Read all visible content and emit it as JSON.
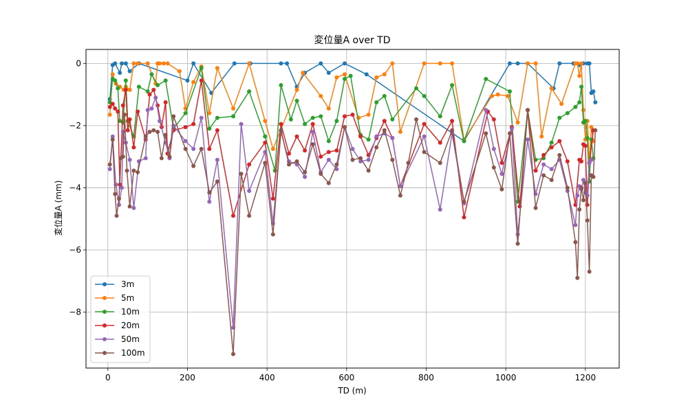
{
  "chart_data": {
    "type": "line",
    "title": "変位量A over TD",
    "xlabel": "TD (m)",
    "ylabel": "変位量A (mm)",
    "xlim": [
      -55,
      1285
    ],
    "ylim": [
      -9.8,
      0.45
    ],
    "xticks": [
      0,
      200,
      400,
      600,
      800,
      1000,
      1200
    ],
    "yticks": [
      0,
      -2,
      -4,
      -6,
      -8
    ],
    "xtick_labels": [
      "0",
      "200",
      "400",
      "600",
      "800",
      "1000",
      "1200"
    ],
    "ytick_labels": [
      "0",
      "−2",
      "−4",
      "−6",
      "−8"
    ],
    "grid": true,
    "legend_position": "lower-left",
    "series": [
      {
        "name": "3m",
        "color": "#1f77b4",
        "x": [
          5,
          12,
          18,
          30,
          35,
          45,
          55,
          78,
          200,
          215,
          260,
          318,
          358,
          435,
          450,
          475,
          495,
          535,
          555,
          595,
          650,
          895,
          1010,
          1030,
          1055,
          1120,
          1135,
          1170,
          1185,
          1195,
          1205,
          1210,
          1215,
          1220,
          1225
        ],
        "y": [
          -1.15,
          -0.05,
          0,
          -0.3,
          0,
          0,
          -0.25,
          0,
          -0.55,
          0,
          -0.95,
          0,
          0,
          0,
          0,
          -0.75,
          -0.3,
          0,
          -0.3,
          0,
          -0.35,
          -2.5,
          0,
          0,
          0,
          -0.8,
          0,
          0,
          -0.05,
          0,
          0,
          0,
          -0.95,
          -0.9,
          -1.25
        ]
      },
      {
        "name": "5m",
        "color": "#ff7f0e",
        "x": [
          5,
          12,
          20,
          30,
          40,
          45,
          55,
          65,
          75,
          100,
          120,
          125,
          130,
          140,
          150,
          180,
          195,
          215,
          235,
          255,
          275,
          315,
          355,
          395,
          415,
          475,
          490,
          535,
          555,
          575,
          595,
          630,
          655,
          675,
          695,
          715,
          735,
          795,
          835,
          865,
          895,
          965,
          980,
          1005,
          1030,
          1055,
          1075,
          1090,
          1115,
          1140,
          1175,
          1180,
          1185,
          1190,
          1195,
          1200,
          1205,
          1210,
          1215,
          1220
        ],
        "y": [
          -1.65,
          -0.35,
          -0.65,
          -0.75,
          -0.85,
          -0.75,
          -0.85,
          0,
          0,
          0,
          -0.65,
          0,
          0,
          0,
          0,
          -0.25,
          -1.45,
          -0.6,
          -0.1,
          -1.6,
          -0.15,
          -1.45,
          0,
          -1.85,
          -2.75,
          -0.85,
          -0.3,
          -1.05,
          -1.45,
          -0.45,
          -0.35,
          -1.75,
          -1.65,
          -0.45,
          -0.35,
          0,
          -2.2,
          0,
          0,
          0,
          -2.45,
          -1.05,
          -1.0,
          -1.05,
          -1.9,
          0,
          0,
          -2.35,
          -0.8,
          -1.3,
          0,
          0,
          -0.4,
          0,
          -1.5,
          -2.45,
          -1.85,
          -3.2,
          -2.05,
          -2.5
        ]
      },
      {
        "name": "10m",
        "color": "#2ca02c",
        "x": [
          5,
          12,
          18,
          25,
          30,
          38,
          45,
          50,
          65,
          78,
          100,
          110,
          125,
          145,
          165,
          195,
          235,
          255,
          275,
          315,
          355,
          395,
          420,
          435,
          460,
          475,
          495,
          515,
          535,
          555,
          575,
          595,
          610,
          635,
          655,
          675,
          695,
          715,
          775,
          795,
          835,
          865,
          895,
          950,
          1010,
          1030,
          1055,
          1075,
          1095,
          1115,
          1135,
          1155,
          1175,
          1185,
          1190,
          1195,
          1200,
          1205,
          1210,
          1215,
          1220
        ],
        "y": [
          -1.25,
          -0.5,
          -0.55,
          -0.8,
          -1.85,
          -1.9,
          -0.55,
          -1.85,
          -2.35,
          -0.75,
          -0.9,
          -0.35,
          -0.7,
          -0.55,
          -2.1,
          -1.6,
          -0.15,
          -2.1,
          -1.75,
          -1.7,
          -0.9,
          -2.35,
          -3.45,
          -0.7,
          -1.8,
          -1.2,
          -1.95,
          -1.75,
          -1.7,
          -2.5,
          -1.85,
          -0.5,
          -0.4,
          -2.3,
          -2.45,
          -1.25,
          -1.05,
          -1.8,
          -0.8,
          -1.05,
          -1.7,
          -0.7,
          -2.5,
          -0.5,
          -0.9,
          -4.45,
          -1.5,
          -3.1,
          -3.05,
          -2.55,
          -1.75,
          -1.6,
          -1.4,
          -1.25,
          -0.75,
          -1.9,
          -1.85,
          -2.4,
          -3.8,
          -2.45,
          -3.05
        ]
      },
      {
        "name": "20m",
        "color": "#d62728",
        "x": [
          5,
          12,
          18,
          25,
          30,
          38,
          45,
          50,
          55,
          65,
          75,
          95,
          105,
          115,
          125,
          135,
          145,
          150,
          165,
          195,
          215,
          235,
          255,
          275,
          315,
          355,
          395,
          415,
          435,
          455,
          475,
          495,
          515,
          535,
          555,
          575,
          595,
          615,
          635,
          655,
          675,
          695,
          715,
          735,
          795,
          835,
          865,
          895,
          955,
          970,
          990,
          1015,
          1035,
          1055,
          1075,
          1095,
          1115,
          1135,
          1155,
          1175,
          1185,
          1190,
          1195,
          1200,
          1205,
          1210,
          1220
        ],
        "y": [
          -1.4,
          -1.3,
          -1.45,
          -1.55,
          -3.9,
          -1.35,
          -0.85,
          -2.15,
          -1.8,
          -2.7,
          -1.55,
          -2.45,
          -1.0,
          -0.85,
          -1.35,
          -2.05,
          -1.25,
          -2.9,
          -2.15,
          -2.05,
          -1.95,
          -0.55,
          -2.75,
          -2.15,
          -4.9,
          -3.25,
          -2.55,
          -4.35,
          -1.95,
          -2.9,
          -2.35,
          -2.8,
          -1.95,
          -3.0,
          -2.85,
          -2.8,
          -1.7,
          -1.65,
          -2.35,
          -2.95,
          -2.4,
          -1.85,
          -2.4,
          -3.95,
          -1.95,
          -2.55,
          -1.85,
          -4.95,
          -1.55,
          -1.8,
          -3.2,
          -2.05,
          -4.6,
          -1.5,
          -3.45,
          -2.95,
          -2.7,
          -2.5,
          -3.15,
          -4.55,
          -3.1,
          -3.15,
          -2.6,
          -2.65,
          -4.55,
          -3.2,
          -2.15
        ]
      },
      {
        "name": "50m",
        "color": "#9467bd",
        "x": [
          5,
          12,
          20,
          28,
          35,
          38,
          45,
          55,
          65,
          78,
          95,
          100,
          110,
          120,
          130,
          145,
          155,
          165,
          195,
          215,
          235,
          255,
          275,
          315,
          335,
          355,
          395,
          415,
          435,
          455,
          475,
          495,
          515,
          535,
          555,
          575,
          595,
          615,
          635,
          655,
          675,
          695,
          715,
          735,
          795,
          835,
          865,
          895,
          950,
          970,
          990,
          1015,
          1030,
          1055,
          1075,
          1095,
          1115,
          1135,
          1155,
          1175,
          1180,
          1185,
          1190,
          1195,
          1200,
          1205,
          1210,
          1215
        ],
        "y": [
          -3.4,
          -2.35,
          -3.9,
          -4.55,
          -4.0,
          -2.2,
          -2.55,
          -3.1,
          -4.65,
          -3.15,
          -3.05,
          -1.5,
          -1.45,
          -1.1,
          -1.85,
          -2.55,
          -3.05,
          -2.0,
          -2.5,
          -2.75,
          -1.75,
          -4.45,
          -3.1,
          -8.5,
          -1.95,
          -4.1,
          -2.85,
          -5.15,
          -2.2,
          -3.15,
          -3.25,
          -3.65,
          -2.2,
          -3.5,
          -3.1,
          -3.4,
          -2.05,
          -2.75,
          -3.15,
          -3.1,
          -2.35,
          -2.25,
          -2.4,
          -3.95,
          -2.35,
          -4.7,
          -2.25,
          -4.5,
          -1.5,
          -2.75,
          -3.55,
          -2.1,
          -5.5,
          -2.45,
          -4.2,
          -3.25,
          -3.4,
          -3.1,
          -4.1,
          -5.2,
          -4.25,
          -3.95,
          -4.05,
          -3.75,
          -4.15,
          -4.25,
          -3.2,
          -3.1
        ]
      },
      {
        "name": "100m",
        "color": "#8c564b",
        "x": [
          5,
          12,
          18,
          22,
          28,
          32,
          38,
          42,
          48,
          55,
          65,
          75,
          95,
          105,
          115,
          125,
          135,
          145,
          155,
          165,
          195,
          215,
          235,
          255,
          275,
          315,
          335,
          355,
          395,
          415,
          435,
          455,
          475,
          495,
          515,
          535,
          555,
          575,
          595,
          615,
          635,
          655,
          675,
          695,
          715,
          735,
          755,
          775,
          795,
          835,
          865,
          895,
          950,
          970,
          990,
          1010,
          1030,
          1055,
          1075,
          1095,
          1115,
          1135,
          1155,
          1175,
          1180,
          1185,
          1190,
          1195,
          1200,
          1205,
          1210,
          1215,
          1220,
          1225
        ],
        "y": [
          -3.25,
          -2.45,
          -4.2,
          -4.9,
          -4.35,
          -3.05,
          -3.0,
          -1.65,
          -3.45,
          -4.6,
          -3.45,
          -3.5,
          -2.35,
          -2.2,
          -2.15,
          -2.2,
          -3.05,
          -2.3,
          -3.0,
          -1.7,
          -2.75,
          -3.3,
          -2.75,
          -4.15,
          -3.8,
          -9.35,
          -3.55,
          -4.9,
          -3.2,
          -5.5,
          -2.15,
          -3.25,
          -3.15,
          -3.5,
          -2.6,
          -3.55,
          -3.85,
          -3.25,
          -2.05,
          -3.1,
          -3.05,
          -3.45,
          -2.7,
          -2.15,
          -3.1,
          -4.25,
          -3.2,
          -1.8,
          -2.85,
          -3.2,
          -2.15,
          -4.45,
          -2.25,
          -3.35,
          -4.05,
          -2.25,
          -5.8,
          -1.5,
          -4.65,
          -3.6,
          -3.75,
          -2.95,
          -4.0,
          -5.75,
          -6.9,
          -4.7,
          -4.0,
          -4.4,
          -3.85,
          -5.05,
          -6.7,
          -3.6,
          -3.65,
          -2.15
        ]
      }
    ]
  }
}
